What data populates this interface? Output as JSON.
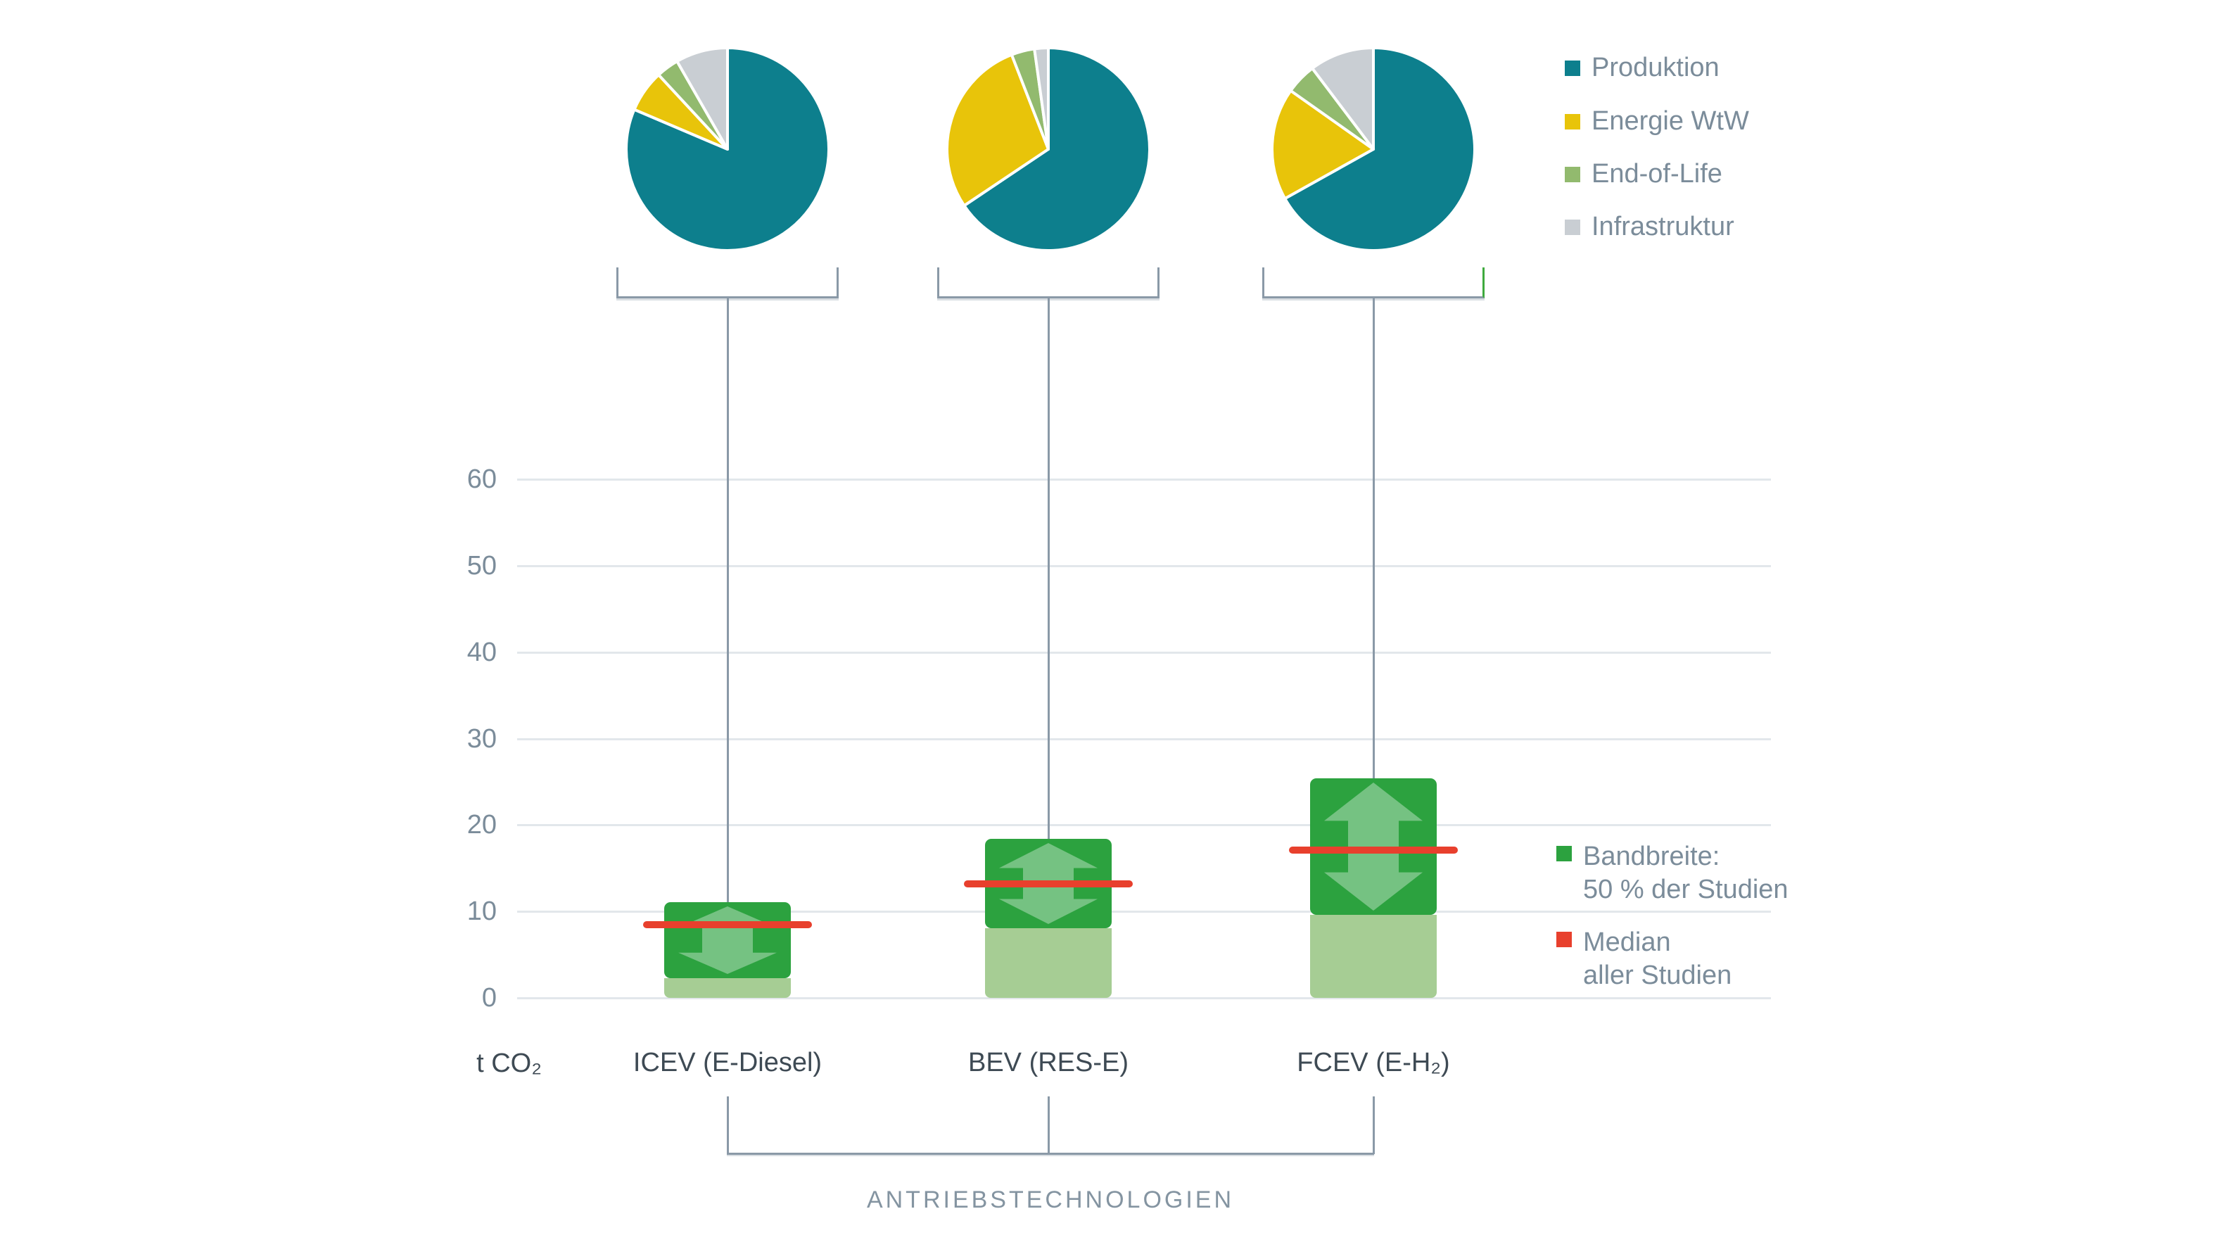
{
  "page": {
    "background": "#ffffff"
  },
  "colors": {
    "produktion": "#0d7f8d",
    "energie_wtw": "#e8c40a",
    "end_of_life": "#92ba6e",
    "infrastruktur": "#c9ced3",
    "band_dark_green": "#2ca23f",
    "band_light_green": "#a6cd94",
    "band_arrow_overlay": "rgba(255,255,255,0.35)",
    "median_red": "#e8402d",
    "gridline": "#e2e7eb",
    "connector_gray": "#8a99a7",
    "bracket_green_leg": "#3faa3e",
    "tick_text": "#7b8c9a",
    "category_text": "#3e4a54",
    "group_label_text": "#8494a1",
    "pie_slice_border": "#ffffff"
  },
  "top_legend": {
    "items": [
      {
        "label": "Produktion",
        "color_key": "produktion"
      },
      {
        "label": "Energie WtW",
        "color_key": "energie_wtw"
      },
      {
        "label": "End-of-Life",
        "color_key": "end_of_life"
      },
      {
        "label": "Infrastruktur",
        "color_key": "infrastruktur"
      }
    ]
  },
  "side_legend": {
    "band": {
      "line1": "Bandbreite:",
      "line2": "50 % der Studien",
      "color_key": "band_dark_green"
    },
    "median": {
      "line1": "Median",
      "line2": "aller Studien",
      "color_key": "median_red"
    }
  },
  "chart_data": {
    "type": "composite",
    "subtype": "pie + box-range bars",
    "unit": "t CO₂",
    "xlabel": "ANTRIEBSTECHNOLOGIEN",
    "grid": "on",
    "y_axis": {
      "unit": "t CO₂",
      "ticks": [
        0,
        10,
        20,
        30,
        40,
        50,
        60
      ],
      "ylim": [
        0,
        65
      ]
    },
    "categories": [
      "ICEV (E-Diesel)",
      "BEV (RES-E)",
      "FCEV (E-H₂)"
    ],
    "pies": {
      "slice_labels": [
        "Produktion",
        "Energie WtW",
        "End-of-Life",
        "Infrastruktur"
      ],
      "values_percent": [
        [
          81.4,
          6.7,
          3.6,
          8.3
        ],
        [
          65.6,
          28.5,
          3.7,
          2.2
        ],
        [
          66.9,
          17.9,
          4.9,
          10.3
        ]
      ]
    },
    "boxes": [
      {
        "category": "ICEV (E-Diesel)",
        "band_low": 2.3,
        "band_high": 11.1,
        "median": 8.5
      },
      {
        "category": "BEV (RES-E)",
        "band_low": 8.1,
        "band_high": 18.4,
        "median": 13.2
      },
      {
        "category": "FCEV (E-H₂)",
        "band_low": 9.6,
        "band_high": 25.4,
        "median": 17.1
      }
    ],
    "legend_entries": {
      "band": "Bandbreite: 50 % der Studien",
      "median": "Median aller Studien"
    },
    "legend_position": "right"
  }
}
